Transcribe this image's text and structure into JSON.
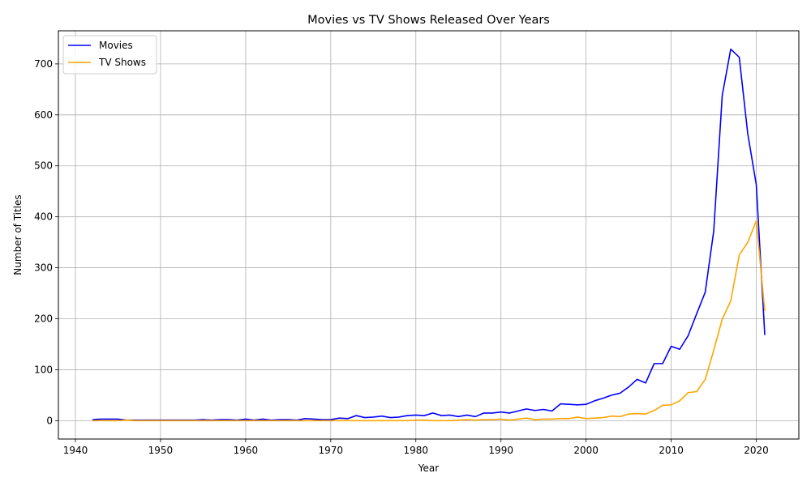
{
  "chart_data": {
    "type": "line",
    "title": "Movies vs TV Shows Released Over Years",
    "xlabel": "Year",
    "ylabel": "Number of Titles",
    "xlim": [
      1938,
      2025
    ],
    "ylim": [
      -36,
      765
    ],
    "xticks": [
      1940,
      1950,
      1960,
      1970,
      1980,
      1990,
      2000,
      2010,
      2020
    ],
    "yticks": [
      0,
      100,
      200,
      300,
      400,
      500,
      600,
      700
    ],
    "grid": true,
    "legend": "top-left",
    "series": [
      {
        "name": "Movies",
        "color": "#0000ff",
        "x": [
          1942,
          1943,
          1944,
          1945,
          1946,
          1947,
          1948,
          1949,
          1950,
          1951,
          1952,
          1953,
          1954,
          1955,
          1956,
          1957,
          1958,
          1959,
          1960,
          1961,
          1962,
          1963,
          1964,
          1965,
          1966,
          1967,
          1968,
          1969,
          1970,
          1971,
          1972,
          1973,
          1974,
          1975,
          1976,
          1977,
          1978,
          1979,
          1980,
          1981,
          1982,
          1983,
          1984,
          1985,
          1986,
          1987,
          1988,
          1989,
          1990,
          1991,
          1992,
          1993,
          1994,
          1995,
          1996,
          1997,
          1998,
          1999,
          2000,
          2001,
          2002,
          2003,
          2004,
          2005,
          2006,
          2007,
          2008,
          2009,
          2010,
          2011,
          2012,
          2013,
          2014,
          2015,
          2016,
          2017,
          2018,
          2019,
          2020,
          2021
        ],
        "y": [
          2,
          3,
          3,
          3,
          1,
          1,
          1,
          1,
          1,
          1,
          1,
          1,
          1,
          2,
          1,
          2,
          2,
          1,
          3,
          1,
          3,
          1,
          2,
          2,
          1,
          4,
          3,
          2,
          2,
          5,
          4,
          10,
          6,
          7,
          9,
          6,
          7,
          10,
          11,
          10,
          15,
          10,
          11,
          8,
          11,
          8,
          15,
          15,
          17,
          15,
          19,
          23,
          20,
          22,
          19,
          33,
          32,
          31,
          32,
          39,
          44,
          50,
          54,
          66,
          81,
          74,
          112,
          112,
          146,
          140,
          167,
          210,
          252,
          372,
          638,
          729,
          713,
          563,
          463,
          168
        ]
      },
      {
        "name": "TV Shows",
        "color": "#ffa500",
        "x": [
          1942,
          1943,
          1944,
          1945,
          1946,
          1947,
          1948,
          1949,
          1950,
          1951,
          1952,
          1953,
          1954,
          1955,
          1956,
          1957,
          1958,
          1959,
          1960,
          1961,
          1962,
          1963,
          1964,
          1965,
          1966,
          1967,
          1968,
          1969,
          1970,
          1971,
          1972,
          1973,
          1974,
          1975,
          1976,
          1977,
          1978,
          1979,
          1980,
          1981,
          1982,
          1983,
          1984,
          1985,
          1986,
          1987,
          1988,
          1989,
          1990,
          1991,
          1992,
          1993,
          1994,
          1995,
          1996,
          1997,
          1998,
          1999,
          2000,
          2001,
          2002,
          2003,
          2004,
          2005,
          2006,
          2007,
          2008,
          2009,
          2010,
          2011,
          2012,
          2013,
          2014,
          2015,
          2016,
          2017,
          2018,
          2019,
          2020,
          2021
        ],
        "y": [
          0,
          0,
          0,
          0,
          1,
          0,
          0,
          0,
          0,
          0,
          0,
          0,
          0,
          0,
          0,
          0,
          0,
          0,
          0,
          0,
          0,
          0,
          0,
          0,
          0,
          0,
          0,
          0,
          0,
          0,
          0,
          0,
          0,
          0,
          0,
          0,
          0,
          0,
          1,
          1,
          0,
          0,
          0,
          1,
          2,
          1,
          2,
          2,
          3,
          1,
          3,
          5,
          2,
          3,
          3,
          4,
          4,
          7,
          4,
          5,
          6,
          9,
          8,
          13,
          14,
          13,
          20,
          30,
          31,
          39,
          55,
          57,
          81,
          138,
          199,
          235,
          325,
          350,
          392,
          215
        ]
      }
    ]
  }
}
